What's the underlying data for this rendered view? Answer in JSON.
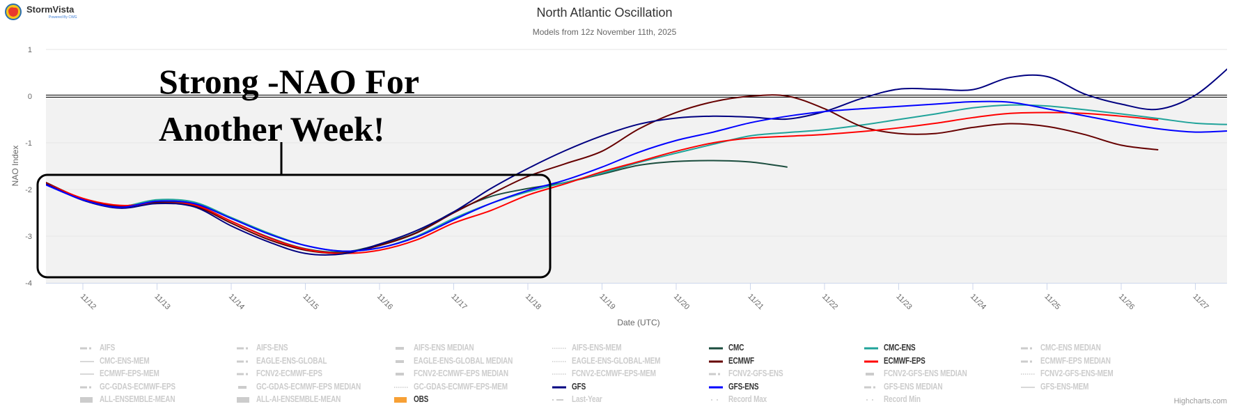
{
  "logo": {
    "name": "StormVista",
    "tagline": "Powered By CWG"
  },
  "chart_data": {
    "type": "line",
    "title": "North Atlantic Oscillation",
    "subtitle": "Models from 12z November 11th, 2025",
    "xlabel": "Date (UTC)",
    "ylabel": "NAO Index",
    "ylim": [
      -4,
      1
    ],
    "yticks": [
      "1",
      "0",
      "-1",
      "-2",
      "-3",
      "-4"
    ],
    "xlim": [
      "11/11 12Z",
      "11/27 10Z"
    ],
    "xticks": [
      "11/12",
      "11/13",
      "11/14",
      "11/15",
      "11/16",
      "11/17",
      "11/18",
      "11/19",
      "11/20",
      "11/21",
      "11/22",
      "11/23",
      "11/24",
      "11/25",
      "11/26",
      "11/27"
    ],
    "grid": true,
    "shaded_below_zero": true,
    "shade_color": "#f2f2f2",
    "legend_placement": "bottom",
    "x": [
      "11/11 12Z",
      "11/12 00Z",
      "11/12 12Z",
      "11/13 00Z",
      "11/13 12Z",
      "11/14 00Z",
      "11/14 12Z",
      "11/15 00Z",
      "11/15 12Z",
      "11/16 00Z",
      "11/16 12Z",
      "11/17 00Z",
      "11/17 12Z",
      "11/18 00Z",
      "11/18 12Z",
      "11/19 00Z",
      "11/19 12Z",
      "11/20 00Z",
      "11/20 12Z",
      "11/21 00Z",
      "11/21 12Z",
      "11/22 00Z",
      "11/22 12Z",
      "11/23 00Z",
      "11/23 12Z",
      "11/24 00Z",
      "11/24 12Z",
      "11/25 00Z",
      "11/25 12Z",
      "11/26 00Z",
      "11/26 12Z",
      "11/27 00Z",
      "11/27 12Z"
    ],
    "series": [
      {
        "name": "CMC",
        "color": "#1b4d3e",
        "values": [
          -1.85,
          -2.2,
          -2.35,
          -2.27,
          -2.32,
          -2.68,
          -3.02,
          -3.27,
          -3.34,
          -3.18,
          -2.92,
          -2.48,
          -2.15,
          -1.98,
          -1.85,
          -1.67,
          -1.48,
          -1.4,
          -1.38,
          -1.41,
          -1.52,
          null,
          null,
          null,
          null,
          null,
          null,
          null,
          null,
          null,
          null,
          null,
          null
        ]
      },
      {
        "name": "CMC-ENS",
        "color": "#20a39a",
        "values": [
          -1.86,
          -2.21,
          -2.36,
          -2.22,
          -2.27,
          -2.6,
          -2.93,
          -3.2,
          -3.32,
          -3.25,
          -3.0,
          -2.62,
          -2.3,
          -2.05,
          -1.85,
          -1.65,
          -1.42,
          -1.22,
          -1.03,
          -0.85,
          -0.78,
          -0.72,
          -0.62,
          -0.5,
          -0.38,
          -0.25,
          -0.19,
          -0.21,
          -0.29,
          -0.38,
          -0.48,
          -0.58,
          -0.61
        ]
      },
      {
        "name": "ECMWF",
        "color": "#660000",
        "values": [
          -1.85,
          -2.2,
          -2.36,
          -2.28,
          -2.35,
          -2.72,
          -3.07,
          -3.3,
          -3.36,
          -3.2,
          -2.93,
          -2.5,
          -2.1,
          -1.72,
          -1.45,
          -1.18,
          -0.7,
          -0.35,
          -0.12,
          0.0,
          0.0,
          -0.27,
          -0.65,
          -0.8,
          -0.8,
          -0.67,
          -0.59,
          -0.65,
          -0.82,
          -1.05,
          -1.15,
          null,
          null
        ]
      },
      {
        "name": "ECMWF-EPS",
        "color": "#ff0000",
        "values": [
          -1.87,
          -2.19,
          -2.34,
          -2.3,
          -2.33,
          -2.68,
          -3.03,
          -3.28,
          -3.37,
          -3.3,
          -3.08,
          -2.72,
          -2.45,
          -2.12,
          -1.88,
          -1.62,
          -1.4,
          -1.18,
          -1.0,
          -0.9,
          -0.86,
          -0.82,
          -0.76,
          -0.68,
          -0.58,
          -0.46,
          -0.37,
          -0.35,
          -0.37,
          -0.43,
          -0.51,
          null,
          null
        ]
      },
      {
        "name": "GFS",
        "color": "#000080",
        "values": [
          -1.88,
          -2.23,
          -2.4,
          -2.3,
          -2.37,
          -2.78,
          -3.12,
          -3.37,
          -3.38,
          -3.17,
          -2.88,
          -2.48,
          -1.98,
          -1.55,
          -1.17,
          -0.85,
          -0.6,
          -0.47,
          -0.43,
          -0.45,
          -0.49,
          -0.33,
          -0.05,
          0.15,
          0.15,
          0.14,
          0.4,
          0.42,
          0.05,
          -0.17,
          -0.28,
          0.02,
          0.68
        ]
      },
      {
        "name": "GFS-ENS",
        "color": "#0000ff",
        "values": [
          -1.9,
          -2.22,
          -2.38,
          -2.25,
          -2.3,
          -2.62,
          -2.95,
          -3.2,
          -3.32,
          -3.25,
          -3.02,
          -2.65,
          -2.3,
          -2.02,
          -1.8,
          -1.52,
          -1.2,
          -0.95,
          -0.77,
          -0.57,
          -0.43,
          -0.33,
          -0.27,
          -0.22,
          -0.17,
          -0.12,
          -0.13,
          -0.27,
          -0.42,
          -0.57,
          -0.7,
          -0.77,
          -0.74
        ]
      }
    ],
    "annotation": {
      "line1": "Strong -NAO For",
      "line2": "Another Week!"
    }
  },
  "legend": [
    {
      "label": "AIFS",
      "symbol": "dash-dot",
      "visible": false
    },
    {
      "label": "AIFS-ENS",
      "symbol": "dash-dot",
      "visible": false
    },
    {
      "label": "AIFS-ENS MEDIAN",
      "symbol": "thick",
      "visible": false
    },
    {
      "label": "AIFS-ENS-MEM",
      "symbol": "dotted",
      "visible": false
    },
    {
      "label": "CMC",
      "symbol": "solid",
      "visible": true,
      "color": "#1b4d3e"
    },
    {
      "label": "CMC-ENS",
      "symbol": "solid",
      "visible": true,
      "color": "#20a39a"
    },
    {
      "label": "CMC-ENS MEDIAN",
      "symbol": "dash-dot",
      "visible": false
    },
    {
      "label": "CMC-ENS-MEM",
      "symbol": "thin",
      "visible": false
    },
    {
      "label": "EAGLE-ENS-GLOBAL",
      "symbol": "dash-dot",
      "visible": false
    },
    {
      "label": "EAGLE-ENS-GLOBAL MEDIAN",
      "symbol": "thick",
      "visible": false
    },
    {
      "label": "EAGLE-ENS-GLOBAL-MEM",
      "symbol": "dotted",
      "visible": false
    },
    {
      "label": "ECMWF",
      "symbol": "solid",
      "visible": true,
      "color": "#660000"
    },
    {
      "label": "ECMWF-EPS",
      "symbol": "solid",
      "visible": true,
      "color": "#ff0000"
    },
    {
      "label": "ECMWF-EPS MEDIAN",
      "symbol": "dash-dot",
      "visible": false
    },
    {
      "label": "ECMWF-EPS-MEM",
      "symbol": "thin",
      "visible": false
    },
    {
      "label": "FCNV2-ECMWF-EPS",
      "symbol": "dash-dot",
      "visible": false
    },
    {
      "label": "FCNV2-ECMWF-EPS MEDIAN",
      "symbol": "thick",
      "visible": false
    },
    {
      "label": "FCNV2-ECMWF-EPS-MEM",
      "symbol": "dotted",
      "visible": false
    },
    {
      "label": "FCNV2-GFS-ENS",
      "symbol": "dash-dot",
      "visible": false
    },
    {
      "label": "FCNV2-GFS-ENS MEDIAN",
      "symbol": "thick",
      "visible": false
    },
    {
      "label": "FCNV2-GFS-ENS-MEM",
      "symbol": "dotted",
      "visible": false
    },
    {
      "label": "GC-GDAS-ECMWF-EPS",
      "symbol": "dash-dot",
      "visible": false
    },
    {
      "label": "GC-GDAS-ECMWF-EPS MEDIAN",
      "symbol": "thick",
      "visible": false
    },
    {
      "label": "GC-GDAS-ECMWF-EPS-MEM",
      "symbol": "dotted",
      "visible": false
    },
    {
      "label": "GFS",
      "symbol": "solid",
      "visible": true,
      "color": "#000080"
    },
    {
      "label": "GFS-ENS",
      "symbol": "solid",
      "visible": true,
      "color": "#0000ff"
    },
    {
      "label": "GFS-ENS MEDIAN",
      "symbol": "dash-dot",
      "visible": false
    },
    {
      "label": "GFS-ENS-MEM",
      "symbol": "thin",
      "visible": false
    },
    {
      "label": "ALL-ENSEMBLE-MEAN",
      "symbol": "block",
      "visible": false
    },
    {
      "label": "ALL-AI-ENSEMBLE-MEAN",
      "symbol": "block",
      "visible": false
    },
    {
      "label": "OBS",
      "symbol": "block",
      "visible": true,
      "color": "#f7a035"
    },
    {
      "label": "Last-Year",
      "symbol": "dot-dash",
      "visible": false
    },
    {
      "label": "Record Max",
      "symbol": "dots",
      "visible": false
    },
    {
      "label": "Record Min",
      "symbol": "dots",
      "visible": false
    }
  ],
  "credit": "Highcharts.com"
}
